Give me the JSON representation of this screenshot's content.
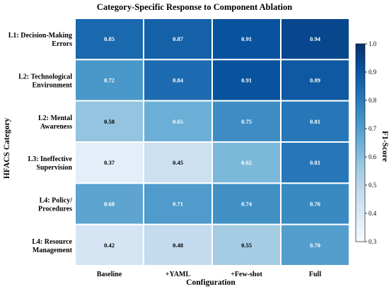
{
  "chart_data": {
    "type": "heatmap",
    "title": "Category-Specific Response to Component Ablation",
    "xlabel": "Configuration",
    "ylabel": "HFACS Category",
    "colorbar_label": "F1-Score",
    "x_categories": [
      "Baseline",
      "+YAML",
      "+Few-shot",
      "Full"
    ],
    "y_categories": [
      [
        "L1: Decision-Making",
        "Errors"
      ],
      [
        "L2: Technological",
        "Environment"
      ],
      [
        "L2: Mental",
        "Awareness"
      ],
      [
        "L3: Ineffective",
        "Supervision"
      ],
      [
        "L4: Policy/",
        "Procedures"
      ],
      [
        "L4: Resource",
        "Management"
      ]
    ],
    "values": [
      [
        0.85,
        0.87,
        0.91,
        0.94
      ],
      [
        0.72,
        0.84,
        0.91,
        0.89
      ],
      [
        0.58,
        0.65,
        0.75,
        0.81
      ],
      [
        0.37,
        0.45,
        0.62,
        0.81
      ],
      [
        0.68,
        0.71,
        0.74,
        0.76
      ],
      [
        0.42,
        0.48,
        0.55,
        0.7
      ]
    ],
    "cell_labels": [
      [
        "0.85",
        "0.87",
        "0.91",
        "0.94"
      ],
      [
        "0.72",
        "0.84",
        "0.91",
        "0.89"
      ],
      [
        "0.58",
        "0.65",
        "0.75",
        "0.81"
      ],
      [
        "0.37",
        "0.45",
        "0.62",
        "0.81"
      ],
      [
        "0.68",
        "0.71",
        "0.74",
        "0.76"
      ],
      [
        "0.42",
        "0.48",
        "0.55",
        "0.70"
      ]
    ],
    "color_range": [
      0.3,
      1.0
    ],
    "colorbar_ticks": [
      "0.3",
      "0.4",
      "0.5",
      "0.6",
      "0.7",
      "0.8",
      "0.9",
      "1.0"
    ],
    "colormap": "Blues",
    "colormap_stops": [
      "#f7fbff",
      "#deebf7",
      "#c6dbef",
      "#9ecae1",
      "#6baed6",
      "#4292c6",
      "#2171b5",
      "#08519c",
      "#08306b"
    ]
  }
}
